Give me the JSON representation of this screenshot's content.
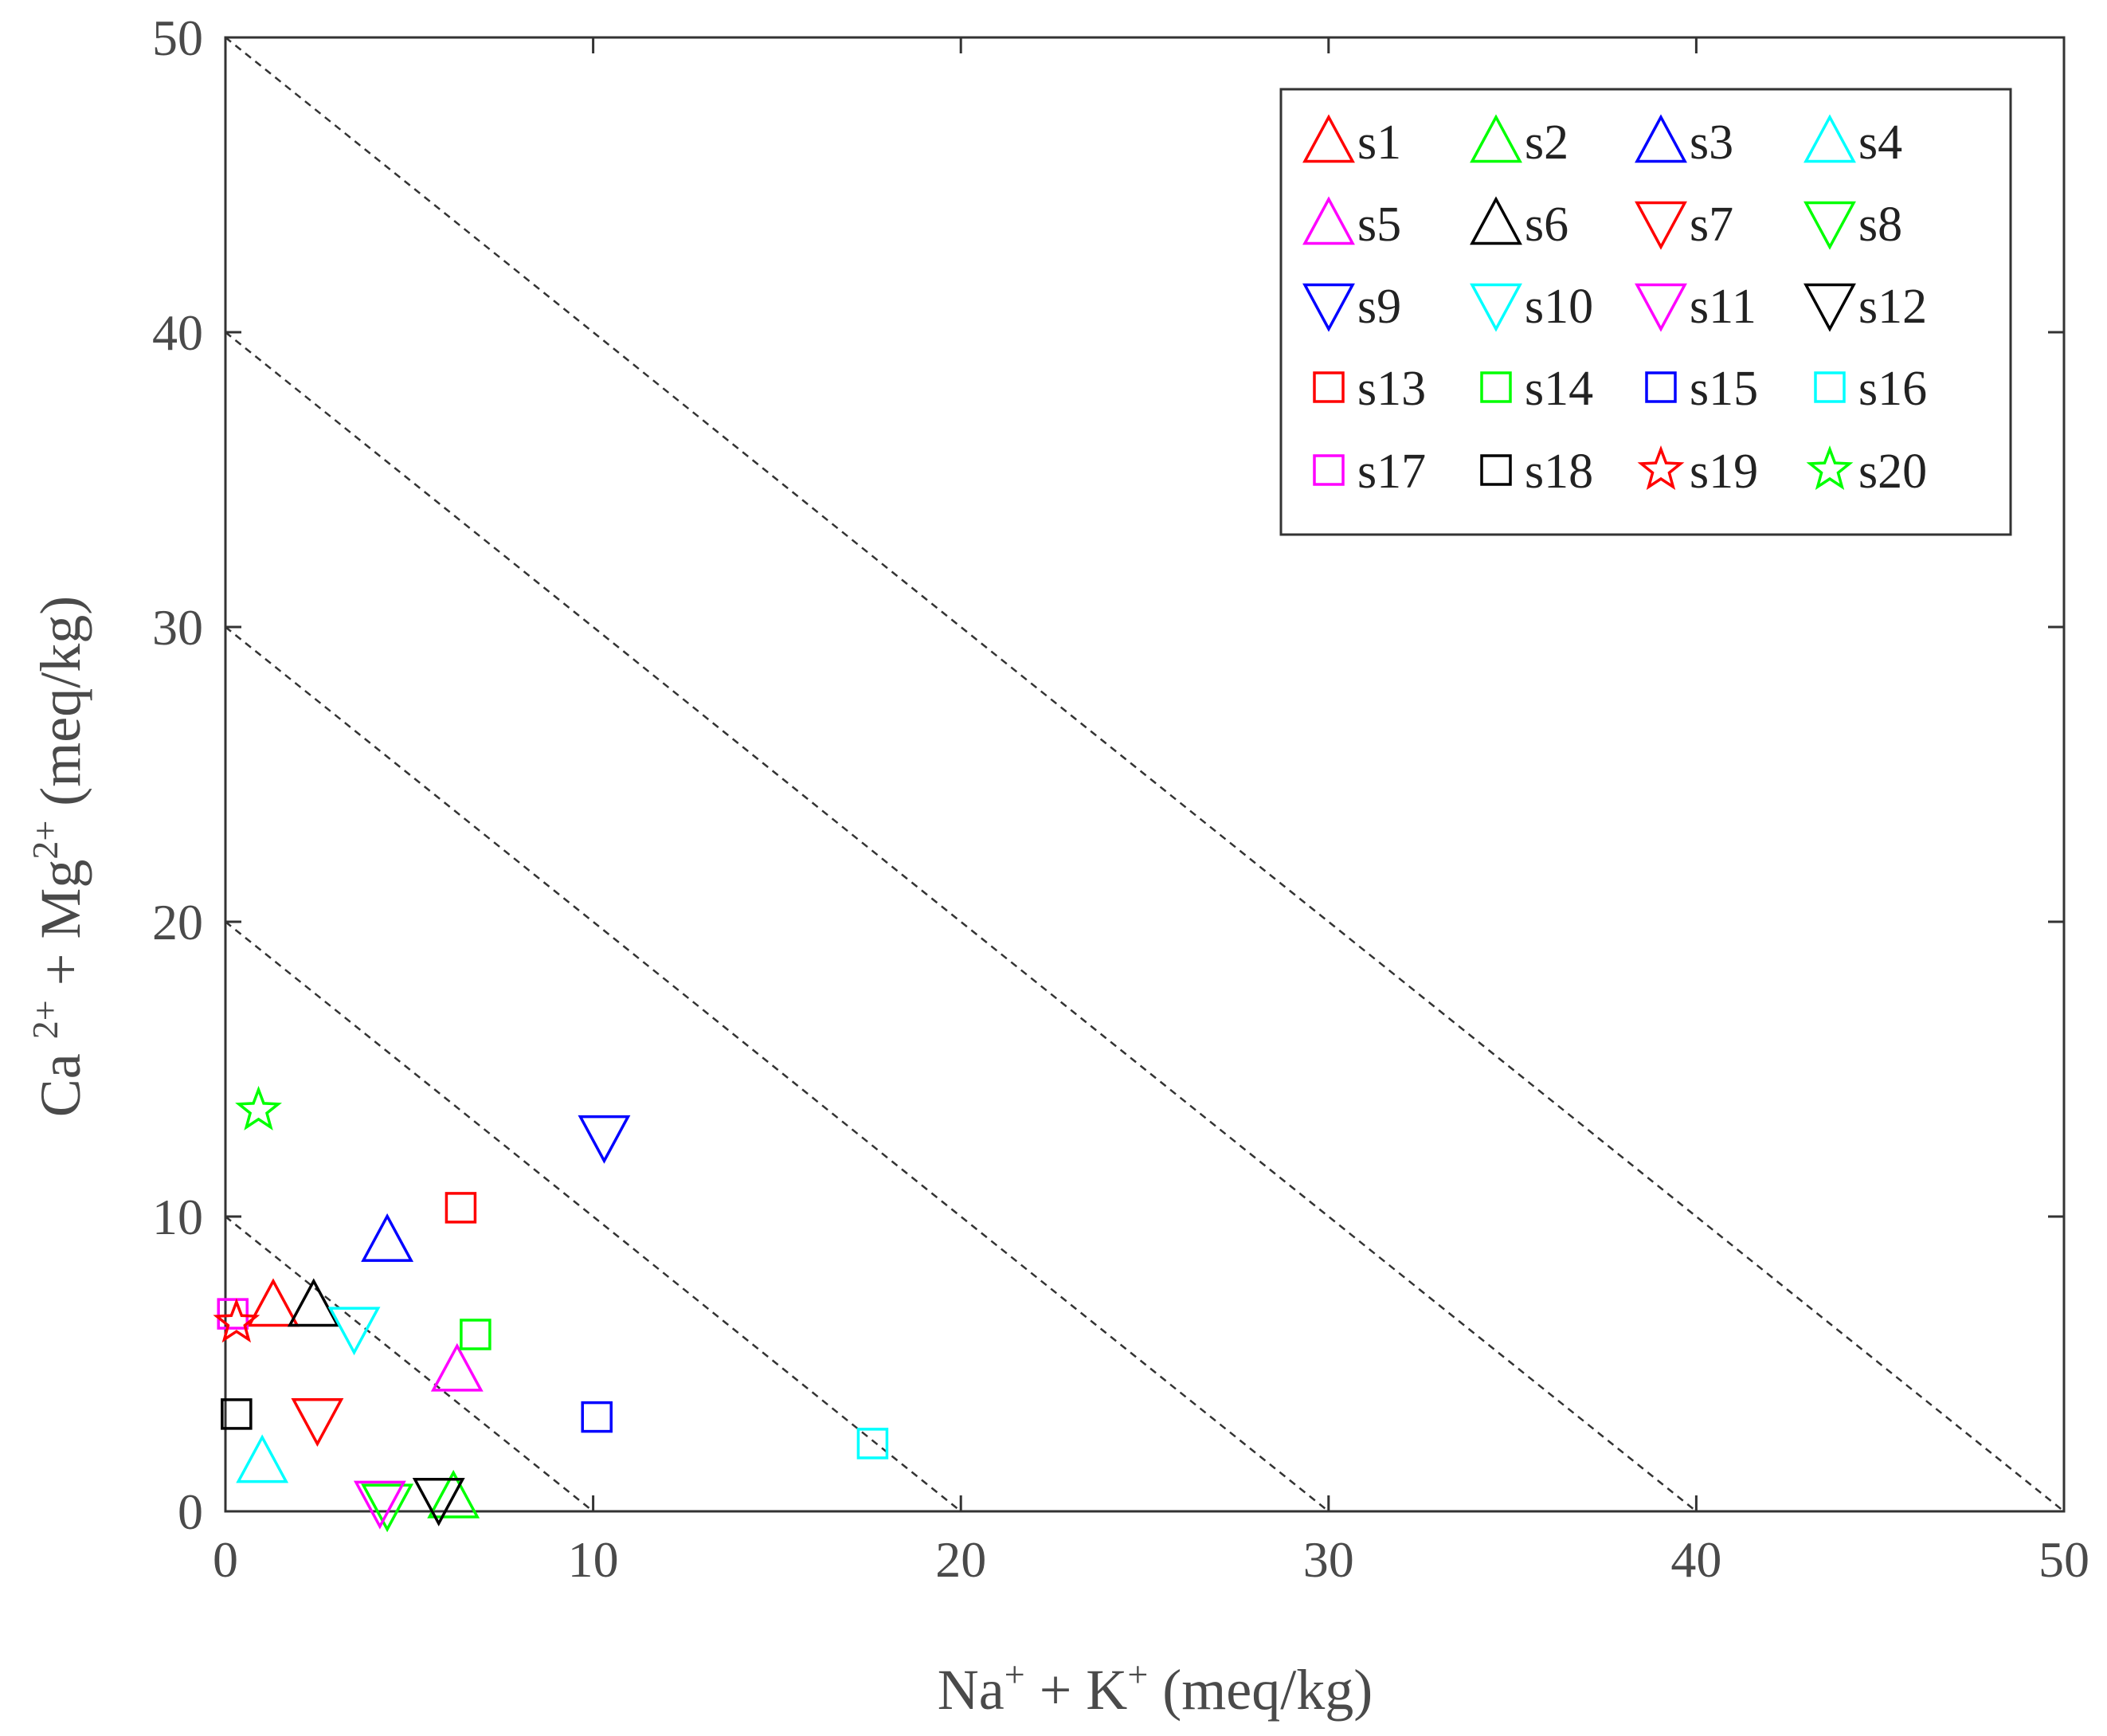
{
  "chart_data": {
    "type": "scatter",
    "title": "",
    "xlabel": {
      "base": "Na",
      "sup1": "+",
      "mid": " + K",
      "sup2": "+",
      "tail": " (meq/kg)"
    },
    "ylabel": {
      "base": "Ca ",
      "sup1": "2+",
      "mid": " + Mg",
      "sup2": "2+",
      "tail": " (meq/kg)"
    },
    "xlim": [
      0,
      50
    ],
    "ylim": [
      0,
      50
    ],
    "xticks": [
      0,
      10,
      20,
      30,
      40,
      50
    ],
    "yticks": [
      0,
      10,
      20,
      30,
      40,
      50
    ],
    "grid": false,
    "legend_position": "top-right",
    "reference_lines": [
      {
        "from": [
          0,
          10
        ],
        "to": [
          10,
          0
        ]
      },
      {
        "from": [
          0,
          20
        ],
        "to": [
          20,
          0
        ]
      },
      {
        "from": [
          0,
          30
        ],
        "to": [
          30,
          0
        ]
      },
      {
        "from": [
          0,
          40
        ],
        "to": [
          40,
          0
        ]
      },
      {
        "from": [
          0,
          50
        ],
        "to": [
          50,
          0
        ]
      }
    ],
    "series": [
      {
        "name": "s1",
        "marker": "triangle-up",
        "color": "#ff0000",
        "x": 1.3,
        "y": 7.0
      },
      {
        "name": "s2",
        "marker": "triangle-up",
        "color": "#00ff00",
        "x": 6.2,
        "y": 0.5
      },
      {
        "name": "s3",
        "marker": "triangle-up",
        "color": "#0000ff",
        "x": 4.4,
        "y": 9.2
      },
      {
        "name": "s4",
        "marker": "triangle-up",
        "color": "#00ffff",
        "x": 1.0,
        "y": 1.7
      },
      {
        "name": "s5",
        "marker": "triangle-up",
        "color": "#ff00ff",
        "x": 6.3,
        "y": 4.8
      },
      {
        "name": "s6",
        "marker": "triangle-up",
        "color": "#000000",
        "x": 2.4,
        "y": 7.0
      },
      {
        "name": "s7",
        "marker": "triangle-down",
        "color": "#ff0000",
        "x": 2.5,
        "y": 3.1
      },
      {
        "name": "s8",
        "marker": "triangle-down",
        "color": "#00ff00",
        "x": 4.4,
        "y": 0.2
      },
      {
        "name": "s9",
        "marker": "triangle-down",
        "color": "#0000ff",
        "x": 10.3,
        "y": 12.7
      },
      {
        "name": "s10",
        "marker": "triangle-down",
        "color": "#00ffff",
        "x": 3.5,
        "y": 6.2
      },
      {
        "name": "s11",
        "marker": "triangle-down",
        "color": "#ff00ff",
        "x": 4.2,
        "y": 0.3
      },
      {
        "name": "s12",
        "marker": "triangle-down",
        "color": "#000000",
        "x": 5.8,
        "y": 0.4
      },
      {
        "name": "s13",
        "marker": "square",
        "color": "#ff0000",
        "x": 6.4,
        "y": 10.3
      },
      {
        "name": "s14",
        "marker": "square",
        "color": "#00ff00",
        "x": 6.8,
        "y": 6.0
      },
      {
        "name": "s15",
        "marker": "square",
        "color": "#0000ff",
        "x": 10.1,
        "y": 3.2
      },
      {
        "name": "s16",
        "marker": "square",
        "color": "#00ffff",
        "x": 17.6,
        "y": 2.3
      },
      {
        "name": "s17",
        "marker": "square",
        "color": "#ff00ff",
        "x": 0.2,
        "y": 6.7
      },
      {
        "name": "s18",
        "marker": "square",
        "color": "#000000",
        "x": 0.3,
        "y": 3.3
      },
      {
        "name": "s19",
        "marker": "star",
        "color": "#ff0000",
        "x": 0.3,
        "y": 6.4
      },
      {
        "name": "s20",
        "marker": "star",
        "color": "#00ff00",
        "x": 0.9,
        "y": 13.6
      }
    ]
  }
}
